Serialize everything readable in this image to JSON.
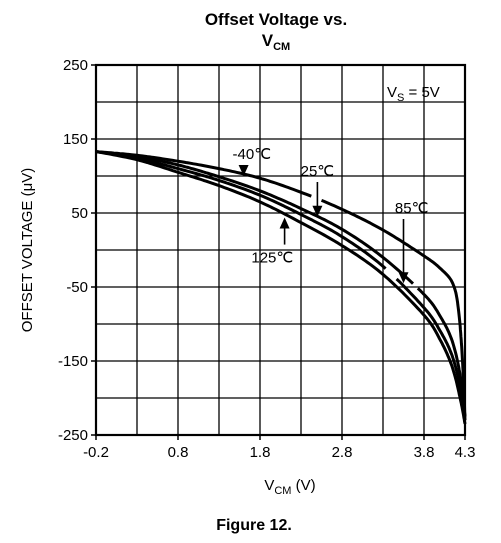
{
  "chart_data": {
    "type": "line",
    "title": "Offset Voltage vs.",
    "title_line2": "V",
    "title_line2_sub": "CM",
    "xlabel": "V",
    "xlabel_sub": "CM",
    "xlabel_unit": " (V)",
    "ylabel": "OFFSET VOLTAGE (μV)",
    "figure_caption": "Figure 12.",
    "xlim": [
      -0.2,
      4.3
    ],
    "ylim": [
      -250,
      250
    ],
    "x_ticks": [
      -0.2,
      0.8,
      1.8,
      2.8,
      3.8,
      4.3
    ],
    "x_tick_labels": [
      "-0.2",
      "0.8",
      "1.8",
      "2.8",
      "3.8",
      "4.3"
    ],
    "y_ticks": [
      250,
      150,
      50,
      -50,
      -150,
      -250
    ],
    "y_tick_labels": [
      "250",
      "150",
      "50",
      "-50",
      "-150",
      "-250"
    ],
    "vertical_gridlines": [
      0.3,
      0.8,
      1.3,
      1.8,
      2.3,
      2.8,
      3.3,
      3.8
    ],
    "horizontal_gridlines": [
      200,
      150,
      100,
      50,
      0,
      -50,
      -100,
      -150,
      -200
    ],
    "grid": true,
    "condition": {
      "label": "V",
      "sub": "S",
      "rest": " = 5V"
    },
    "series": [
      {
        "name": "-40℃",
        "x": [
          -0.2,
          0.3,
          0.8,
          1.3,
          1.8,
          2.3,
          2.8,
          3.3,
          3.8,
          4.0,
          4.15,
          4.22,
          4.27,
          4.3
        ],
        "values": [
          133,
          128,
          120,
          110,
          97,
          78,
          55,
          27,
          -8,
          -25,
          -45,
          -80,
          -150,
          -230
        ],
        "gaps": [
          [
            2.45,
            2.55
          ]
        ]
      },
      {
        "name": "25℃",
        "x": [
          -0.2,
          0.3,
          0.8,
          1.3,
          1.8,
          2.3,
          2.8,
          3.3,
          3.8,
          4.0,
          4.15,
          4.25,
          4.3
        ],
        "values": [
          133,
          126,
          115,
          99,
          80,
          56,
          28,
          -10,
          -60,
          -90,
          -125,
          -175,
          -225
        ],
        "gaps": [
          [
            3.67,
            3.72
          ]
        ]
      },
      {
        "name": "85℃",
        "x": [
          -0.2,
          0.3,
          0.8,
          1.3,
          1.8,
          2.3,
          2.8,
          3.3,
          3.8,
          4.0,
          4.15,
          4.25,
          4.3
        ],
        "values": [
          133,
          124,
          110,
          94,
          74,
          48,
          18,
          -22,
          -78,
          -110,
          -145,
          -190,
          -225
        ],
        "gaps": [
          [
            3.36,
            3.44
          ]
        ]
      },
      {
        "name": "125℃",
        "x": [
          -0.2,
          0.3,
          0.8,
          1.3,
          1.8,
          2.3,
          2.8,
          3.3,
          3.8,
          4.0,
          4.15,
          4.25,
          4.3
        ],
        "values": [
          133,
          122,
          105,
          87,
          65,
          37,
          6,
          -33,
          -88,
          -122,
          -160,
          -205,
          -235
        ],
        "gaps": []
      }
    ],
    "annotations": [
      {
        "text": "-40℃",
        "series": "-40℃",
        "x": 1.7,
        "y": 123,
        "pointer": "down",
        "target_x": 1.6,
        "target_y": 100
      },
      {
        "text": "25℃",
        "series": "25℃",
        "x": 2.5,
        "y": 100,
        "pointer": "down",
        "target_x": 2.5,
        "target_y": 45
      },
      {
        "text": "85℃",
        "series": "85℃",
        "x": 3.65,
        "y": 50,
        "pointer": "down",
        "target_x": 3.55,
        "target_y": -45
      },
      {
        "text": "125℃",
        "series": "125℃",
        "x": 1.95,
        "y": -17,
        "pointer": "up",
        "target_x": 2.1,
        "target_y": 44
      }
    ]
  }
}
